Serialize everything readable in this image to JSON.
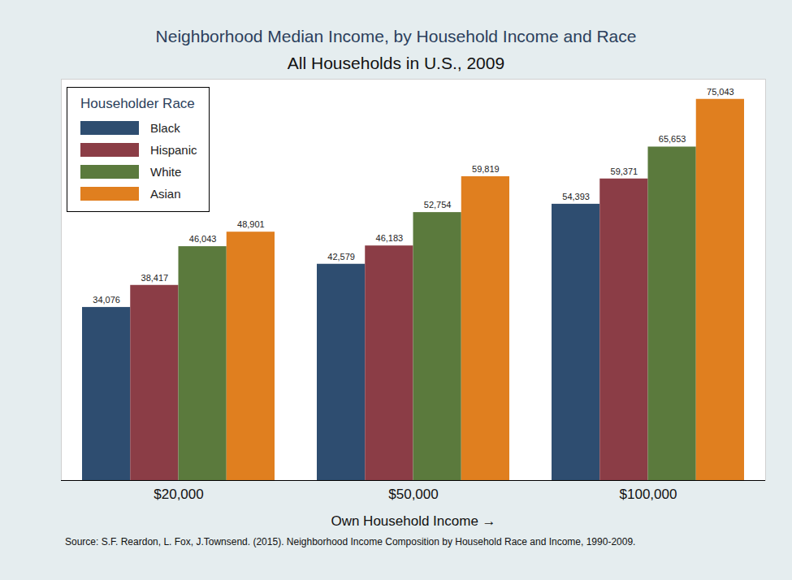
{
  "chart_data": {
    "type": "bar",
    "title": "Neighborhood Median Income, by Household Income and Race",
    "subtitle": "All Households in U.S., 2009",
    "x_label": "Own Household Income",
    "caption": "Source: S.F. Reardon, L. Fox, J.Townsend. (2015). Neighborhood Income Composition by Household Race and Income, 1990-2009.",
    "legend_title": "Householder Race",
    "legend": "top-left",
    "categories": [
      "$20,000",
      "$50,000",
      "$100,000"
    ],
    "series": [
      {
        "name": "Black",
        "color": "#2e4d70",
        "values": [
          34076,
          42579,
          54393
        ],
        "value_labels": [
          "34,076",
          "42,579",
          "54,393"
        ]
      },
      {
        "name": "Hispanic",
        "color": "#8b3d46",
        "values": [
          38417,
          46183,
          59371
        ],
        "value_labels": [
          "38,417",
          "46,183",
          "59,371"
        ]
      },
      {
        "name": "White",
        "color": "#5b7a3d",
        "values": [
          46043,
          52754,
          65653
        ],
        "value_labels": [
          "46,043",
          "52,754",
          "65,653"
        ]
      },
      {
        "name": "Asian",
        "color": "#e07f1f",
        "values": [
          48901,
          59819,
          75043
        ],
        "value_labels": [
          "48,901",
          "59,819",
          "75,043"
        ]
      }
    ],
    "ylim": [
      0,
      79000
    ],
    "yticks": [],
    "tick_labels": "x",
    "data_labels": true,
    "grid": false
  }
}
